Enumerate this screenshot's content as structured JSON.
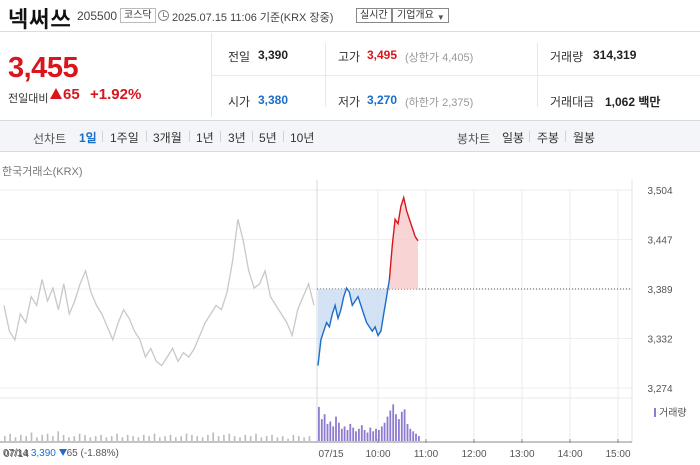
{
  "header": {
    "name": "넥써쓰",
    "code": "205500",
    "market": "코스닥",
    "datetime": "2025.07.15 11:06 기준(KRX 장중)",
    "realtime": "실시간",
    "company_btn": "기업개요",
    "caret": "▼"
  },
  "price": {
    "current": "3,455",
    "change_label": "전일대비",
    "change": "65",
    "rate": "+1.92%"
  },
  "quotes": {
    "prev_label": "전일",
    "prev": "3,390",
    "high_label": "고가",
    "high": "3,495",
    "upper_limit": "(상한가 4,405)",
    "volume_label": "거래량",
    "volume": "314,319",
    "open_label": "시가",
    "open": "3,380",
    "low_label": "저가",
    "low": "3,270",
    "lower_limit": "(하한가 2,375)",
    "amount_label": "거래대금",
    "amount": "1,062 백만"
  },
  "tabs": {
    "line_label": "선차트",
    "line": [
      "1일",
      "1주일",
      "3개월",
      "1년",
      "3년",
      "5년",
      "10년"
    ],
    "active": "1일",
    "candle_label": "봉차트",
    "candle": [
      "일봉",
      "주봉",
      "월봉"
    ]
  },
  "colors": {
    "up": "#d8161c",
    "down": "#1a6ec8",
    "prev_day": "#c8c8c8",
    "volume": "#8e7bd0"
  },
  "chart_data": {
    "type": "line",
    "exchange_label": "한국거래소(KRX)",
    "y_ticks": [
      "3,504",
      "3,447",
      "3,389",
      "3,332",
      "3,274"
    ],
    "ylim": [
      3274,
      3504
    ],
    "baseline": 3389,
    "x_ticks": [
      "07/14",
      "07/15",
      "10:00",
      "11:00",
      "12:00",
      "13:00",
      "14:00",
      "15:00"
    ],
    "grid": true,
    "series": [
      {
        "name": "07/14",
        "values": [
          3370,
          3340,
          3330,
          3360,
          3350,
          3380,
          3370,
          3400,
          3375,
          3390,
          3365,
          3395,
          3360,
          3375,
          3395,
          3410,
          3385,
          3370,
          3360,
          3345,
          3330,
          3350,
          3365,
          3355,
          3340,
          3330,
          3310,
          3320,
          3305,
          3300,
          3310,
          3320,
          3305,
          3315,
          3310,
          3320,
          3335,
          3350,
          3360,
          3370,
          3365,
          3385,
          3420,
          3470,
          3445,
          3410,
          3390,
          3395,
          3410,
          3380,
          3370,
          3360,
          3350,
          3335,
          3365,
          3380,
          3395,
          3370
        ]
      },
      {
        "name": "07/15",
        "values": [
          3300,
          3330,
          3340,
          3350,
          3345,
          3360,
          3370,
          3355,
          3365,
          3380,
          3390,
          3385,
          3370,
          3375,
          3380,
          3370,
          3360,
          3350,
          3345,
          3340,
          3345,
          3335,
          3340,
          3360,
          3380,
          3400,
          3440,
          3470,
          3465,
          3485,
          3495,
          3480,
          3470,
          3460,
          3450,
          3445
        ]
      }
    ],
    "volume_label": "거래량",
    "volume_prev": [
      4,
      6,
      3,
      5,
      4,
      7,
      3,
      5,
      6,
      4,
      8,
      5,
      3,
      4,
      6,
      5,
      3,
      4,
      5,
      3,
      4,
      6,
      3,
      5,
      4,
      3,
      5,
      4,
      6,
      3,
      4,
      5,
      3,
      4,
      6,
      5,
      4,
      3,
      5,
      7,
      4,
      5,
      6,
      4,
      3,
      5,
      4,
      6,
      3,
      4,
      5,
      3,
      4,
      2,
      5,
      4,
      3,
      4
    ],
    "volume_today": [
      28,
      18,
      22,
      14,
      16,
      12,
      20,
      15,
      10,
      12,
      9,
      14,
      11,
      8,
      10,
      13,
      9,
      7,
      11,
      8,
      10,
      9,
      12,
      15,
      20,
      25,
      30,
      22,
      18,
      24,
      26,
      14,
      10,
      8,
      6,
      4
    ]
  },
  "footer": {
    "date": "07/14",
    "price": "3,390",
    "change": "65",
    "rate": "(-1.88%)"
  }
}
